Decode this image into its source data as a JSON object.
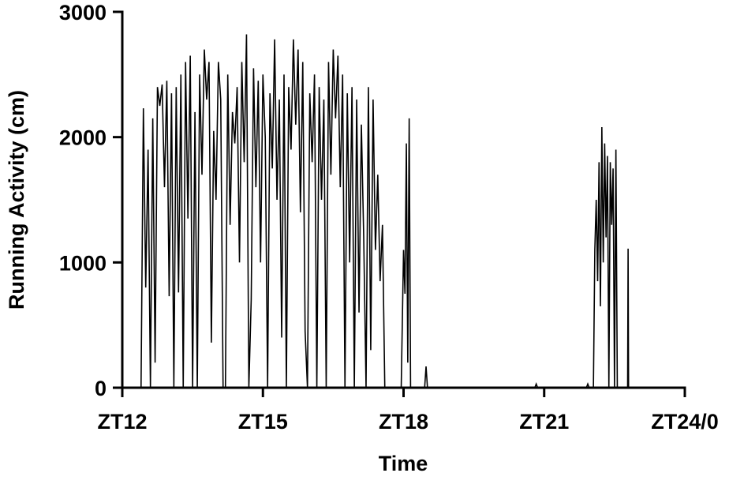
{
  "chart_data": {
    "type": "line",
    "color": "#000000",
    "x_label": "Time",
    "y_label": "Running Activity (cm)",
    "x": [
      12.0,
      12.4,
      12.45,
      12.5,
      12.55,
      12.6,
      12.65,
      12.7,
      12.75,
      12.8,
      12.85,
      12.9,
      12.95,
      13.0,
      13.05,
      13.1,
      13.15,
      13.2,
      13.25,
      13.3,
      13.35,
      13.4,
      13.45,
      13.5,
      13.55,
      13.6,
      13.65,
      13.7,
      13.75,
      13.8,
      13.85,
      13.9,
      13.95,
      14.0,
      14.05,
      14.1,
      14.15,
      14.2,
      14.25,
      14.3,
      14.35,
      14.4,
      14.45,
      14.5,
      14.55,
      14.6,
      14.65,
      14.7,
      14.75,
      14.8,
      14.85,
      14.9,
      14.95,
      15.0,
      15.05,
      15.1,
      15.15,
      15.2,
      15.25,
      15.3,
      15.35,
      15.4,
      15.45,
      15.5,
      15.55,
      15.6,
      15.65,
      15.7,
      15.75,
      15.8,
      15.85,
      15.9,
      15.95,
      16.0,
      16.05,
      16.1,
      16.15,
      16.2,
      16.25,
      16.3,
      16.35,
      16.4,
      16.45,
      16.5,
      16.55,
      16.6,
      16.65,
      16.7,
      16.75,
      16.8,
      16.85,
      16.9,
      16.95,
      17.0,
      17.05,
      17.1,
      17.15,
      17.2,
      17.25,
      17.3,
      17.35,
      17.4,
      17.45,
      17.5,
      17.55,
      17.6,
      17.65,
      17.95,
      18.0,
      18.03,
      18.06,
      18.09,
      18.12,
      18.15,
      18.45,
      18.48,
      18.51,
      20.8,
      20.83,
      20.86,
      21.9,
      21.93,
      21.96,
      22.05,
      22.08,
      22.11,
      22.14,
      22.17,
      22.2,
      22.23,
      22.26,
      22.29,
      22.32,
      22.35,
      22.38,
      22.41,
      22.44,
      22.47,
      22.5,
      22.53,
      22.56,
      22.78,
      22.79,
      22.8,
      24
    ],
    "values": [
      0,
      0,
      2230,
      800,
      1900,
      0,
      2150,
      200,
      2400,
      2250,
      2420,
      1600,
      2450,
      730,
      2350,
      0,
      2400,
      760,
      2500,
      0,
      2600,
      1350,
      2650,
      0,
      2200,
      0,
      2500,
      1700,
      2700,
      2300,
      2600,
      360,
      2050,
      1500,
      2600,
      2300,
      0,
      0,
      2500,
      1300,
      2200,
      1950,
      2400,
      1000,
      2600,
      1800,
      2820,
      0,
      700,
      2550,
      1600,
      2450,
      1000,
      2500,
      2000,
      0,
      2350,
      1750,
      2780,
      1500,
      2300,
      400,
      2500,
      0,
      2400,
      1900,
      2780,
      2100,
      2700,
      1400,
      2600,
      450,
      0,
      2350,
      1800,
      2500,
      0,
      2400,
      1500,
      2300,
      0,
      2600,
      1700,
      2700,
      2150,
      2650,
      1600,
      2500,
      0,
      2350,
      1000,
      2400,
      0,
      2300,
      600,
      2100,
      1200,
      0,
      2400,
      300,
      2300,
      1100,
      1700,
      850,
      1300,
      0,
      0,
      0,
      1100,
      750,
      1950,
      200,
      2150,
      0,
      0,
      170,
      0,
      0,
      30,
      0,
      0,
      30,
      0,
      0,
      1100,
      1500,
      850,
      1800,
      650,
      2080,
      1000,
      1950,
      1200,
      1850,
      0,
      1800,
      1300,
      1750,
      0,
      1900,
      0,
      0,
      1110,
      0,
      0
    ],
    "xlim": [
      12,
      24
    ],
    "xticks": [
      {
        "value": 12,
        "label": "ZT12"
      },
      {
        "value": 15,
        "label": "ZT15"
      },
      {
        "value": 18,
        "label": "ZT18"
      },
      {
        "value": 21,
        "label": "ZT21"
      },
      {
        "value": 24,
        "label": "ZT24/0"
      }
    ],
    "ylim": [
      0,
      3000
    ],
    "yticks": [
      0,
      1000,
      2000,
      3000
    ]
  }
}
